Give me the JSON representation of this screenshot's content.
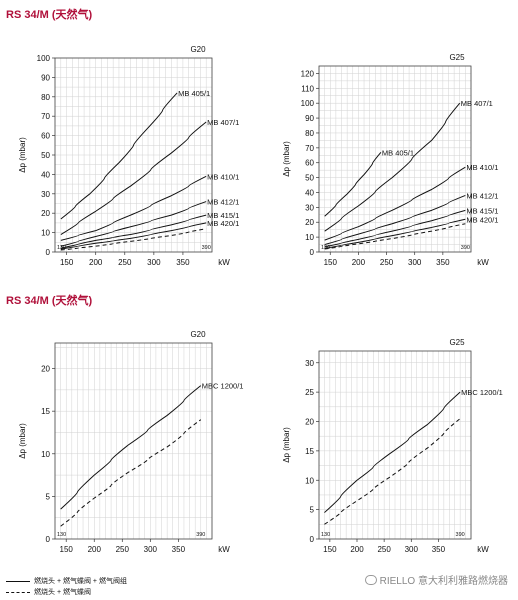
{
  "sections": [
    {
      "title": "RS 34/M (天然气)"
    },
    {
      "title": "RS 34/M (天然气)"
    }
  ],
  "legend": [
    {
      "label": "燃烧头 + 燃气蝶阀 + 燃气阀组",
      "style": "solid"
    },
    {
      "label": "燃烧头 + 燃气蝶阀",
      "style": "dashed"
    }
  ],
  "watermark": {
    "text": "RIELLO 意大利利雅路燃烧器",
    "icon": "wechat-icon"
  },
  "chart_data": [
    {
      "type": "line",
      "title": "G20",
      "ylabel": "Δp (mbar)",
      "xlabel": "kW",
      "xlim": [
        130,
        400
      ],
      "ylim": [
        0,
        100
      ],
      "xticks": [
        150,
        200,
        250,
        300,
        350
      ],
      "yticks": [
        0,
        10,
        20,
        30,
        40,
        50,
        60,
        70,
        80,
        90,
        100
      ],
      "xnotes": [
        {
          "x": 130,
          "label": "130"
        },
        {
          "x": 390,
          "label": "390"
        }
      ],
      "grid": true,
      "series": [
        {
          "name": "MB 405/1",
          "style": "solid",
          "x": [
            140,
            190,
            240,
            290,
            340
          ],
          "y": [
            17,
            30,
            46,
            64,
            82
          ]
        },
        {
          "name": "MB 407/1",
          "style": "solid",
          "x": [
            140,
            200,
            260,
            330,
            390
          ],
          "y": [
            9,
            21,
            34,
            51,
            67
          ]
        },
        {
          "name": "MB 410/1",
          "style": "solid",
          "x": [
            140,
            200,
            260,
            330,
            390
          ],
          "y": [
            6,
            11,
            19,
            29,
            39
          ]
        },
        {
          "name": "MB 412/1",
          "style": "solid",
          "x": [
            140,
            200,
            260,
            330,
            390
          ],
          "y": [
            3,
            8,
            13,
            19,
            26
          ]
        },
        {
          "name": "MB 415/1",
          "style": "solid",
          "x": [
            140,
            200,
            260,
            330,
            390
          ],
          "y": [
            2,
            6,
            9,
            14,
            19
          ]
        },
        {
          "name": "MB 420/1",
          "style": "solid",
          "x": [
            140,
            200,
            260,
            330,
            390
          ],
          "y": [
            1.5,
            4.5,
            7,
            11,
            15
          ]
        },
        {
          "name": "",
          "style": "dashed",
          "x": [
            140,
            200,
            260,
            330,
            390
          ],
          "y": [
            1,
            3,
            5.5,
            8.5,
            12
          ]
        }
      ]
    },
    {
      "type": "line",
      "title": "G25",
      "ylabel": "Δp (mbar)",
      "xlabel": "kW",
      "xlim": [
        130,
        400
      ],
      "ylim": [
        0,
        125
      ],
      "xticks": [
        150,
        200,
        250,
        300,
        350
      ],
      "yticks": [
        0,
        10,
        20,
        30,
        40,
        50,
        60,
        70,
        80,
        90,
        100,
        110,
        120
      ],
      "xnotes": [
        {
          "x": 130,
          "label": "130"
        },
        {
          "x": 390,
          "label": "390"
        }
      ],
      "grid": true,
      "series": [
        {
          "name": "MB 405/1",
          "style": "solid",
          "x": [
            140,
            180,
            210,
            240
          ],
          "y": [
            24,
            39,
            52,
            67
          ]
        },
        {
          "name": "MB 407/1",
          "style": "solid",
          "x": [
            140,
            200,
            260,
            330,
            380
          ],
          "y": [
            14,
            31,
            50,
            75,
            100
          ]
        },
        {
          "name": "MB 410/1",
          "style": "solid",
          "x": [
            140,
            200,
            260,
            330,
            390
          ],
          "y": [
            8,
            17,
            28,
            42,
            57
          ]
        },
        {
          "name": "MB 412/1",
          "style": "solid",
          "x": [
            140,
            200,
            260,
            330,
            390
          ],
          "y": [
            5,
            12,
            19,
            28,
            38
          ]
        },
        {
          "name": "MB 415/1",
          "style": "solid",
          "x": [
            140,
            200,
            260,
            330,
            390
          ],
          "y": [
            3.5,
            8.5,
            14,
            21,
            28
          ]
        },
        {
          "name": "MB 420/1",
          "style": "solid",
          "x": [
            140,
            200,
            260,
            330,
            390
          ],
          "y": [
            2.5,
            6.5,
            11,
            16.5,
            22
          ]
        },
        {
          "name": "",
          "style": "dashed",
          "x": [
            140,
            200,
            260,
            330,
            390
          ],
          "y": [
            2,
            5.5,
            9,
            14,
            19
          ]
        }
      ]
    },
    {
      "type": "line",
      "title": "G20",
      "ylabel": "Δp (mbar)",
      "xlabel": "kW",
      "xlim": [
        130,
        410
      ],
      "ylim": [
        0,
        23
      ],
      "xticks": [
        150,
        200,
        250,
        300,
        350
      ],
      "yticks": [
        0,
        5,
        10,
        15,
        20
      ],
      "xnotes": [
        {
          "x": 130,
          "label": "130"
        },
        {
          "x": 390,
          "label": "390"
        }
      ],
      "grid": true,
      "series": [
        {
          "name": "MBC 1200/1",
          "style": "solid",
          "x": [
            140,
            200,
            260,
            330,
            390
          ],
          "y": [
            3.5,
            7.5,
            11,
            14.5,
            18
          ]
        },
        {
          "name": "",
          "style": "dashed",
          "x": [
            140,
            200,
            260,
            330,
            390
          ],
          "y": [
            1.5,
            4.8,
            7.8,
            10.8,
            14
          ]
        }
      ]
    },
    {
      "type": "line",
      "title": "G25",
      "ylabel": "Δp (mbar)",
      "xlabel": "kW",
      "xlim": [
        130,
        410
      ],
      "ylim": [
        0,
        32
      ],
      "xticks": [
        150,
        200,
        250,
        300,
        350
      ],
      "yticks": [
        0,
        5,
        10,
        15,
        20,
        25,
        30
      ],
      "xnotes": [
        {
          "x": 130,
          "label": "130"
        },
        {
          "x": 390,
          "label": "390"
        }
      ],
      "grid": true,
      "series": [
        {
          "name": "MBC 1200/1",
          "style": "solid",
          "x": [
            140,
            200,
            260,
            330,
            390
          ],
          "y": [
            4.5,
            10,
            14.5,
            19.5,
            25
          ]
        },
        {
          "name": "",
          "style": "dashed",
          "x": [
            140,
            200,
            260,
            330,
            390
          ],
          "y": [
            2.5,
            6.5,
            10.5,
            15.5,
            20.5
          ]
        }
      ]
    }
  ]
}
